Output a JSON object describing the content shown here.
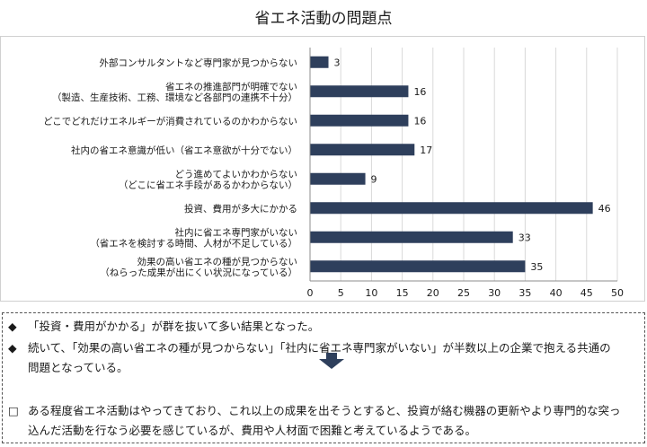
{
  "chart_data": {
    "type": "bar",
    "orientation": "horizontal",
    "title": "省エネ活動の問題点",
    "categories": [
      [
        "外部コンサルタントなど専門家が見つからない"
      ],
      [
        "省エネの推進部門が明確でない",
        "（製造、生産技術、工務、環境など各部門の連携不十分）"
      ],
      [
        "どこでどれだけエネルギーが消費されているのかわからない"
      ],
      [
        "社内の省エネ意識が低い（省エネ意欲が十分でない）"
      ],
      [
        "どう進めてよいかわからない",
        "（どこに省エネ手段があるかわからない）"
      ],
      [
        "投資、費用が多大にかかる"
      ],
      [
        "社内に省エネ専門家がいない",
        "（省エネを検討する時間、人材が不足している）"
      ],
      [
        "効果の高い省エネの種が見つからない",
        "（ねらった成果が出にくい状況になっている）"
      ]
    ],
    "values": [
      3,
      16,
      16,
      17,
      9,
      46,
      33,
      35
    ],
    "xlim": [
      0,
      50
    ],
    "xticks": [
      0,
      5,
      10,
      15,
      20,
      25,
      30,
      35,
      40,
      45,
      50
    ],
    "bar_color": "#2e3f5c",
    "grid": true,
    "legend": "none"
  },
  "notes": [
    {
      "bullet": "◆",
      "lines": [
        "「投資・費用がかかる」が群を抜いて多い結果となった。"
      ]
    },
    {
      "bullet": "◆",
      "lines": [
        "続いて、「効果の高い省エネの種が見つからない」「社内に省エネ専門家がいない」が半数以上の企業で抱える共通の",
        "問題となっている。"
      ]
    },
    {
      "bullet": "□",
      "lines": [
        "ある程度省エネ活動はやってきており、これ以上の成果を出そうとすると、投資が絡む機器の更新やより専門的な突っ",
        "込んだ活動を行なう必要を感じているが、費用や人材面で困難と考えているようである。"
      ]
    }
  ],
  "arrow_icon": "down-arrow-icon",
  "arrow_color": "#2e3f5c"
}
